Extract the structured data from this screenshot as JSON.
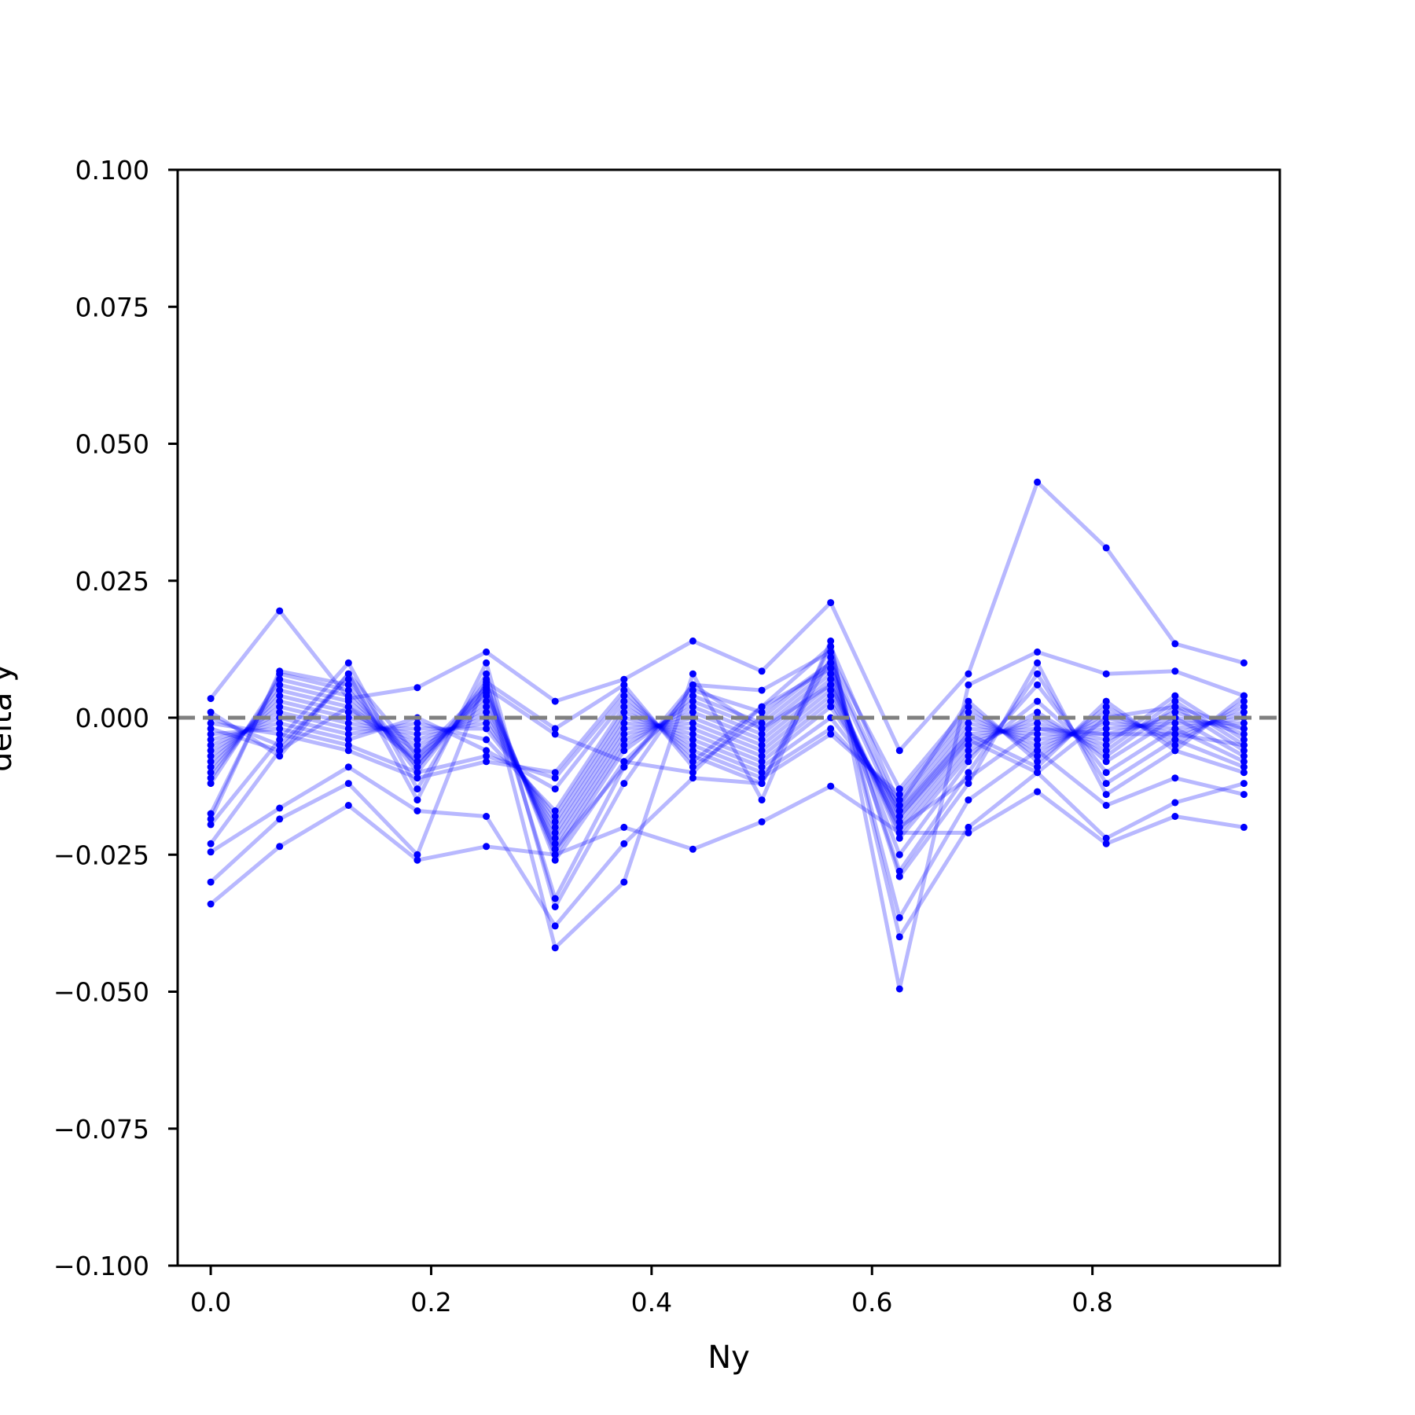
{
  "chart_data": {
    "type": "line",
    "xlabel": "Ny",
    "ylabel": "delta y",
    "xlim": [
      -0.03,
      0.97
    ],
    "ylim": [
      -0.1,
      0.1
    ],
    "xticks": [
      0.0,
      0.2,
      0.4,
      0.6,
      0.8
    ],
    "xtick_labels": [
      "0.0",
      "0.2",
      "0.4",
      "0.6",
      "0.8"
    ],
    "yticks": [
      -0.1,
      -0.075,
      -0.05,
      -0.025,
      0.0,
      0.025,
      0.05,
      0.075,
      0.1
    ],
    "ytick_labels": [
      "−0.100",
      "−0.075",
      "−0.050",
      "−0.025",
      "0.000",
      "0.025",
      "0.050",
      "0.075",
      "0.100"
    ],
    "reference_line": {
      "y": 0.0,
      "style": "dashed",
      "color": "#808080"
    },
    "grid": false,
    "line_color": "#0000ff",
    "line_opacity": 0.28,
    "marker_color": "#0000ff",
    "x": [
      0.0,
      0.0625,
      0.125,
      0.1875,
      0.25,
      0.3125,
      0.375,
      0.4375,
      0.5,
      0.5625,
      0.625,
      0.6875,
      0.75,
      0.8125,
      0.875,
      0.9375
    ],
    "series": [
      {
        "values": [
          0.0035,
          0.0195,
          0.0035,
          0.0055,
          0.012,
          0.003,
          0.007,
          0.014,
          0.0085,
          0.021,
          -0.006,
          0.008,
          0.043,
          0.031,
          0.0135,
          0.01
        ]
      },
      {
        "values": [
          -0.034,
          -0.0235,
          -0.016,
          -0.026,
          -0.0235,
          -0.025,
          -0.02,
          -0.024,
          -0.019,
          -0.0125,
          -0.021,
          -0.021,
          -0.0135,
          -0.023,
          -0.018,
          -0.02
        ]
      },
      {
        "values": [
          -0.03,
          -0.0185,
          -0.012,
          -0.025,
          0.007,
          -0.042,
          -0.03,
          0.008,
          -0.015,
          0.014,
          -0.0495,
          0.006,
          0.012,
          0.008,
          0.0085,
          0.004
        ]
      },
      {
        "values": [
          -0.0245,
          -0.0165,
          -0.009,
          -0.017,
          -0.018,
          -0.038,
          -0.023,
          -0.011,
          -0.012,
          0.013,
          -0.04,
          -0.02,
          -0.01,
          -0.022,
          -0.0155,
          -0.012
        ]
      },
      {
        "values": [
          -0.023,
          -0.006,
          0.008,
          -0.015,
          0.01,
          -0.0345,
          -0.012,
          0.006,
          0.005,
          0.012,
          -0.0365,
          -0.015,
          -0.006,
          -0.016,
          -0.011,
          -0.014
        ]
      },
      {
        "values": [
          -0.0195,
          -0.004,
          0.01,
          -0.013,
          0.008,
          -0.033,
          -0.009,
          0.005,
          0.001,
          0.01,
          -0.029,
          -0.012,
          0.01,
          -0.014,
          -0.006,
          -0.01
        ]
      },
      {
        "values": [
          -0.0185,
          0.0085,
          0.006,
          -0.01,
          0.006,
          -0.026,
          -0.008,
          0.004,
          -0.001,
          0.009,
          -0.028,
          -0.01,
          0.008,
          -0.012,
          -0.004,
          -0.009
        ]
      },
      {
        "values": [
          -0.0175,
          0.008,
          0.005,
          -0.009,
          0.005,
          -0.025,
          -0.006,
          0.003,
          -0.002,
          0.008,
          -0.025,
          -0.008,
          0.006,
          -0.01,
          -0.002,
          -0.008
        ]
      },
      {
        "values": [
          -0.012,
          0.007,
          0.004,
          -0.008,
          0.004,
          -0.024,
          -0.005,
          0.002,
          -0.003,
          0.007,
          -0.022,
          -0.007,
          0.003,
          -0.008,
          0.0,
          -0.007
        ]
      },
      {
        "values": [
          -0.011,
          0.006,
          0.003,
          -0.007,
          0.003,
          -0.023,
          -0.004,
          0.001,
          -0.004,
          0.006,
          -0.021,
          -0.006,
          0.001,
          -0.007,
          0.002,
          -0.006
        ]
      },
      {
        "values": [
          -0.01,
          0.005,
          0.002,
          -0.006,
          0.002,
          -0.022,
          -0.003,
          0.0,
          -0.005,
          0.005,
          -0.02,
          -0.005,
          0.0,
          -0.006,
          0.003,
          -0.005
        ]
      },
      {
        "values": [
          -0.009,
          0.004,
          0.001,
          -0.005,
          0.001,
          -0.021,
          -0.002,
          -0.001,
          -0.006,
          0.004,
          -0.019,
          -0.004,
          -0.001,
          -0.005,
          0.004,
          -0.004
        ]
      },
      {
        "values": [
          -0.008,
          0.003,
          0.0,
          -0.004,
          0.0,
          -0.02,
          -0.001,
          -0.002,
          -0.007,
          0.003,
          -0.018,
          -0.003,
          -0.002,
          -0.004,
          0.001,
          -0.003
        ]
      },
      {
        "values": [
          -0.007,
          0.002,
          -0.001,
          -0.003,
          -0.001,
          -0.019,
          0.0,
          -0.003,
          -0.008,
          0.002,
          -0.017,
          -0.002,
          -0.003,
          -0.003,
          0.0,
          -0.002
        ]
      },
      {
        "values": [
          -0.006,
          0.001,
          -0.002,
          -0.002,
          -0.002,
          -0.018,
          0.001,
          -0.004,
          -0.009,
          0.0,
          -0.016,
          -0.001,
          -0.004,
          -0.002,
          -0.001,
          -0.001
        ]
      },
      {
        "values": [
          -0.005,
          0.0,
          -0.003,
          -0.001,
          -0.004,
          -0.017,
          0.002,
          -0.005,
          -0.01,
          -0.002,
          -0.015,
          0.0,
          -0.005,
          -0.001,
          -0.002,
          0.0
        ]
      },
      {
        "values": [
          -0.004,
          -0.001,
          -0.004,
          0.0,
          -0.006,
          -0.013,
          0.003,
          -0.006,
          -0.011,
          -0.003,
          -0.014,
          0.001,
          -0.006,
          0.0,
          -0.003,
          0.001
        ]
      },
      {
        "values": [
          -0.003,
          -0.002,
          -0.005,
          -0.01,
          -0.007,
          -0.011,
          0.004,
          -0.007,
          -0.012,
          0.011,
          -0.013,
          0.002,
          -0.007,
          0.001,
          -0.004,
          0.002
        ]
      },
      {
        "values": [
          -0.001,
          -0.003,
          -0.006,
          -0.011,
          -0.008,
          -0.01,
          0.005,
          -0.008,
          0.002,
          0.013,
          -0.016,
          0.003,
          -0.008,
          0.002,
          -0.005,
          0.003
        ]
      },
      {
        "values": [
          0.0,
          -0.005,
          0.007,
          -0.009,
          0.0065,
          -0.002,
          0.006,
          -0.009,
          0.0,
          0.01,
          -0.017,
          -0.003,
          -0.009,
          0.003,
          -0.006,
          0.004
        ]
      },
      {
        "values": [
          0.001,
          -0.007,
          0.008,
          -0.007,
          0.0055,
          -0.003,
          -0.008,
          -0.01,
          0.002,
          0.009,
          -0.018,
          -0.004,
          -0.01,
          0.0,
          0.002,
          -0.002
        ]
      },
      {
        "values": [
          -0.002,
          -0.006,
          0.002,
          -0.008,
          0.0045,
          -0.024,
          -0.009,
          0.006,
          -0.002,
          0.006,
          -0.02,
          -0.011,
          -0.002,
          -0.003,
          -0.003,
          -0.005
        ]
      }
    ]
  }
}
